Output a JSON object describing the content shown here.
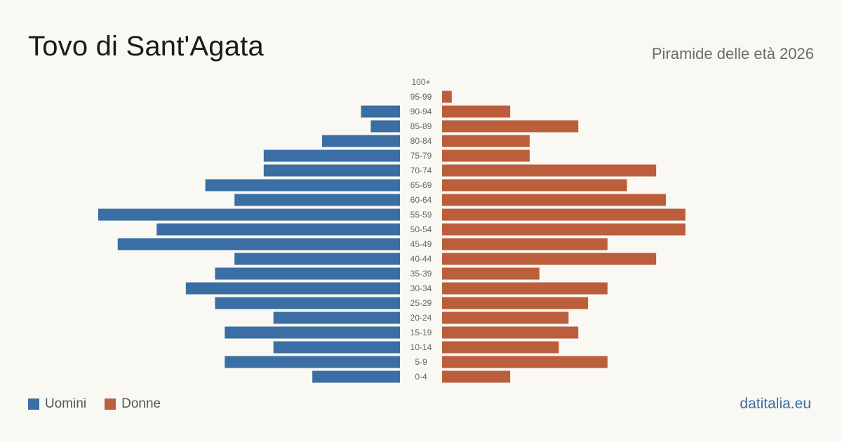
{
  "header": {
    "title": "Tovo di Sant'Agata",
    "subtitle": "Piramide delle età 2026"
  },
  "legend": {
    "men_label": "Uomini",
    "women_label": "Donne"
  },
  "source": "datitalia.eu",
  "colors": {
    "men": "#3a6ea5",
    "women": "#bb5e3c",
    "background": "#faf8f3"
  },
  "chart_data": {
    "type": "bar",
    "orientation": "horizontal-pyramid",
    "categories": [
      "100+",
      "95-99",
      "90-94",
      "85-89",
      "80-84",
      "75-79",
      "70-74",
      "65-69",
      "60-64",
      "55-59",
      "50-54",
      "45-49",
      "40-44",
      "35-39",
      "30-34",
      "25-29",
      "20-24",
      "15-19",
      "10-14",
      "5-9",
      "0-4"
    ],
    "series": [
      {
        "name": "Uomini",
        "values": [
          0,
          0,
          4,
          3,
          8,
          14,
          14,
          20,
          17,
          31,
          25,
          29,
          17,
          19,
          22,
          19,
          13,
          18,
          13,
          18,
          9
        ]
      },
      {
        "name": "Donne",
        "values": [
          0,
          1,
          7,
          14,
          9,
          9,
          22,
          19,
          23,
          25,
          25,
          17,
          22,
          10,
          17,
          15,
          13,
          14,
          12,
          17,
          7
        ]
      }
    ],
    "xlim": [
      0,
      31
    ],
    "legend_position": "bottom-left"
  }
}
